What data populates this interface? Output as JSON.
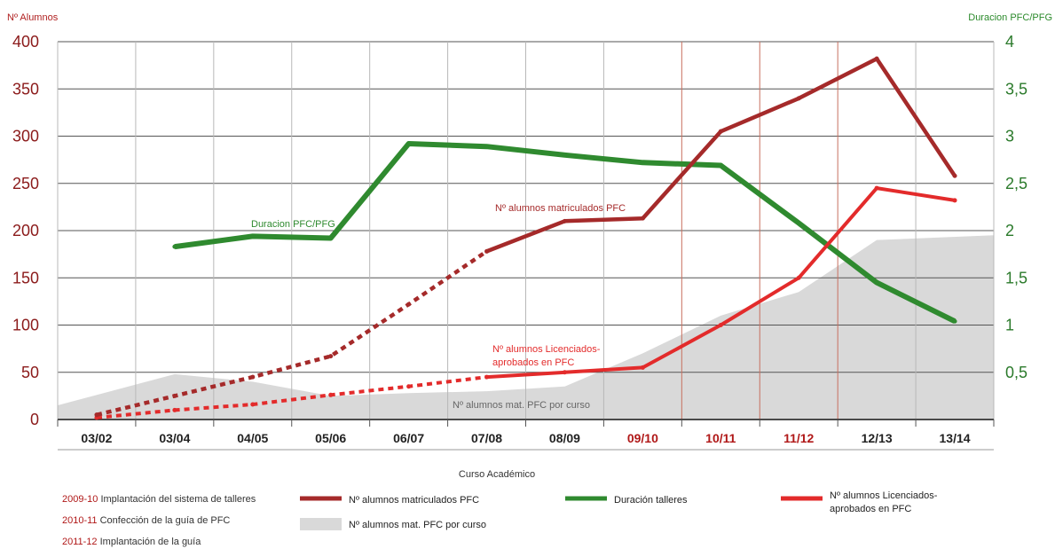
{
  "chart_data": {
    "type": "line",
    "ylabel": "Nº Alumnos",
    "y2label": "Duracion PFC/PFG",
    "xlabel": "Curso Académico",
    "categories": [
      "03/02",
      "03/04",
      "04/05",
      "05/06",
      "06/07",
      "07/08",
      "08/09",
      "09/10",
      "10/11",
      "11/12",
      "12/13",
      "13/14"
    ],
    "highlight_categories": [
      "09/10",
      "10/11",
      "11/12"
    ],
    "ylim": [
      0,
      400
    ],
    "y2lim": [
      0,
      4
    ],
    "y_ticks": [
      "0",
      "50",
      "100",
      "150",
      "200",
      "250",
      "300",
      "350",
      "400"
    ],
    "y2_ticks": [
      "0,5",
      "1",
      "1,5",
      "2",
      "2,5",
      "3",
      "3,5",
      "4"
    ],
    "grid": true,
    "series": [
      {
        "key": "matriculados",
        "name": "Nº alumnos matriculados PFC",
        "axis": "left",
        "color": "#a52a2a",
        "values": [
          5,
          25,
          45,
          67,
          122,
          178,
          210,
          213,
          305,
          340,
          382,
          258
        ],
        "dashed_until_index": 5,
        "annotation": "Nº alumnos matriculados PFC"
      },
      {
        "key": "licenciados",
        "name": "Nº alumnos Licenciados-aprobados en PFC",
        "axis": "left",
        "color": "#e32b2b",
        "values": [
          2,
          10,
          16,
          26,
          35,
          45,
          50,
          55,
          100,
          150,
          245,
          232
        ],
        "dashed_until_index": 5,
        "annotation_lines": [
          "Nº alumnos Licenciados-",
          "aprobados en PFC"
        ]
      },
      {
        "key": "duracion",
        "name": "Duración talleres",
        "axis": "right",
        "color": "#2f8a2f",
        "values": [
          null,
          1.83,
          1.94,
          1.92,
          2.92,
          2.89,
          2.8,
          2.72,
          2.69,
          2.08,
          1.45,
          1.04
        ],
        "annotation": "Duracion PFC/PFG"
      },
      {
        "key": "porcurso",
        "name": "Nº alumnos mat. PFC por curso",
        "axis": "left",
        "type": "area",
        "color": "#d9d9d9",
        "values": [
          15,
          48,
          40,
          25,
          28,
          30,
          35,
          70,
          110,
          135,
          190,
          195
        ],
        "annotation": "Nº alumnos mat. PFC por curso"
      }
    ],
    "legend": {
      "placement": "bottom",
      "items": [
        {
          "series": "matriculados",
          "label": "Nº alumnos matriculados PFC"
        },
        {
          "series": "duracion",
          "label": "Duración  talleres"
        },
        {
          "series": "licenciados",
          "label_lines": [
            "Nº alumnos Licenciados-",
            "aprobados en PFC"
          ]
        },
        {
          "series": "porcurso",
          "label": "Nº alumnos mat. PFC por curso"
        }
      ]
    },
    "notes": [
      {
        "year": "2009-10",
        "text": "Implantación del sistema de talleres"
      },
      {
        "year": "2010-11",
        "text": "Confección de la guía de PFC"
      },
      {
        "year": "2011-12",
        "text": "Implantación de la guía"
      }
    ]
  }
}
